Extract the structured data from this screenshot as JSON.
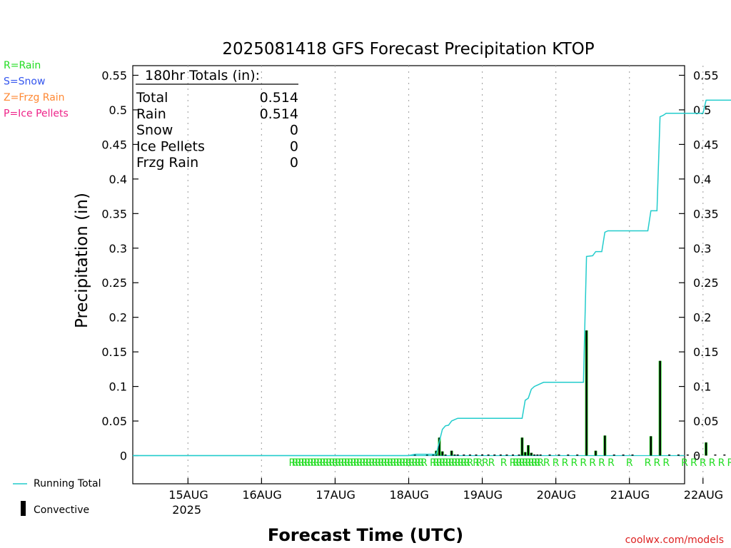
{
  "chart_data": {
    "type": "bar",
    "title": "2025081418 GFS Forecast Precipitation KTOP",
    "xlabel": "Forecast Time (UTC)",
    "ylabel": "Precipitation (in)",
    "ylim": [
      -0.04,
      0.56
    ],
    "yticks": [
      "0",
      "0.05",
      "0.1",
      "0.15",
      "0.2",
      "0.25",
      "0.3",
      "0.35",
      "0.4",
      "0.45",
      "0.5",
      "0.55"
    ],
    "ytick_values": [
      0,
      0.05,
      0.1,
      0.15,
      0.2,
      0.25,
      0.3,
      0.35,
      0.4,
      0.45,
      0.5,
      0.55
    ],
    "x_start_hour": -18,
    "x_end_hour": 162,
    "day_labels": [
      "15AUG",
      "16AUG",
      "17AUG",
      "18AUG",
      "19AUG",
      "20AUG",
      "21AUG",
      "22AUG"
    ],
    "day_hours": [
      0,
      24,
      48,
      72,
      96,
      120,
      144,
      168
    ],
    "year_label": "2025",
    "grid": "vertical dotted at day boundaries",
    "legend_types": [
      {
        "label": "R=Rain",
        "color": "#22dd22"
      },
      {
        "label": "S=Snow",
        "color": "#3355ee"
      },
      {
        "label": "Z=Frzg Rain",
        "color": "#ff8833"
      },
      {
        "label": "P=Ice Pellets",
        "color": "#ee2288"
      }
    ],
    "legend_series": [
      {
        "label": "Running Total",
        "color": "#22cccc"
      },
      {
        "label": "Convective",
        "color": "#000000"
      }
    ],
    "totals": {
      "header": "180hr Totals (in):",
      "rows": [
        {
          "label": "Total",
          "value": "0.514"
        },
        {
          "label": "Rain",
          "value": "0.514"
        },
        {
          "label": "Snow",
          "value": "0"
        },
        {
          "label": "Ice Pellets",
          "value": "0"
        },
        {
          "label": "Frzg Rain",
          "value": "0"
        }
      ]
    },
    "running_total": [
      [
        -18,
        0
      ],
      [
        72,
        0
      ],
      [
        74,
        0.002
      ],
      [
        81,
        0.002
      ],
      [
        82,
        0.02
      ],
      [
        83,
        0.038
      ],
      [
        84,
        0.043
      ],
      [
        85,
        0.044
      ],
      [
        86,
        0.05
      ],
      [
        87,
        0.052
      ],
      [
        88,
        0.054
      ],
      [
        99,
        0.054
      ],
      [
        109,
        0.054
      ],
      [
        110,
        0.08
      ],
      [
        111,
        0.083
      ],
      [
        112,
        0.096
      ],
      [
        113,
        0.1
      ],
      [
        114,
        0.102
      ],
      [
        115,
        0.104
      ],
      [
        116,
        0.106
      ],
      [
        129,
        0.106
      ],
      [
        130,
        0.288
      ],
      [
        132,
        0.289
      ],
      [
        133,
        0.295
      ],
      [
        135,
        0.295
      ],
      [
        136,
        0.323
      ],
      [
        137,
        0.325
      ],
      [
        150,
        0.325
      ],
      [
        151,
        0.354
      ],
      [
        153,
        0.354
      ],
      [
        154,
        0.49
      ],
      [
        155,
        0.492
      ],
      [
        156,
        0.495
      ],
      [
        168,
        0.495
      ],
      [
        169,
        0.514
      ],
      [
        174,
        0.514
      ],
      [
        180,
        0.514
      ]
    ],
    "bars": [
      [
        74,
        0.001
      ],
      [
        78,
        0.001
      ],
      [
        80,
        0.001
      ],
      [
        81,
        0.007
      ],
      [
        82,
        0.026
      ],
      [
        83,
        0.006
      ],
      [
        84,
        0.002
      ],
      [
        86,
        0.007
      ],
      [
        87,
        0.003
      ],
      [
        88,
        0.001
      ],
      [
        90,
        0.001
      ],
      [
        92,
        0.001
      ],
      [
        94,
        0.001
      ],
      [
        96,
        0.001
      ],
      [
        98,
        0.001
      ],
      [
        100,
        0.001
      ],
      [
        102,
        0.001
      ],
      [
        104,
        0.001
      ],
      [
        106,
        0.001
      ],
      [
        108,
        0.001
      ],
      [
        109,
        0.026
      ],
      [
        110,
        0.005
      ],
      [
        111,
        0.015
      ],
      [
        112,
        0.004
      ],
      [
        113,
        0.001
      ],
      [
        114,
        0.003
      ],
      [
        115,
        0.001
      ],
      [
        118,
        0.001
      ],
      [
        121,
        0.001
      ],
      [
        124,
        0.001
      ],
      [
        127,
        0.001
      ],
      [
        130,
        0.181
      ],
      [
        133,
        0.007
      ],
      [
        136,
        0.029
      ],
      [
        139,
        0.001
      ],
      [
        142,
        0.001
      ],
      [
        145,
        0.001
      ],
      [
        151,
        0.028
      ],
      [
        154,
        0.137
      ],
      [
        157,
        0.002
      ],
      [
        160,
        0.001
      ],
      [
        163,
        0.001
      ],
      [
        166,
        0.001
      ],
      [
        169,
        0.019
      ],
      [
        172,
        0.001
      ],
      [
        175,
        0.001
      ],
      [
        178,
        0.001
      ]
    ],
    "rain_marks": [
      34,
      35,
      36,
      37,
      38,
      39,
      40,
      41,
      42,
      43,
      44,
      45,
      46,
      47,
      48,
      49,
      50,
      51,
      52,
      53,
      54,
      55,
      56,
      57,
      58,
      59,
      60,
      61,
      62,
      63,
      64,
      65,
      66,
      67,
      68,
      69,
      70,
      71,
      72,
      73,
      74,
      75,
      76,
      77,
      80,
      81,
      82,
      83,
      84,
      85,
      86,
      87,
      88,
      89,
      90,
      91,
      92,
      94,
      95,
      97,
      99,
      103,
      106,
      107,
      108,
      109,
      110,
      111,
      112,
      113,
      114,
      115,
      117,
      120,
      123,
      126,
      129,
      132,
      135,
      138,
      144,
      150,
      153,
      156,
      162,
      165,
      168,
      171,
      174,
      177
    ]
  },
  "footer": {
    "credit": "coolwx.com/models"
  }
}
